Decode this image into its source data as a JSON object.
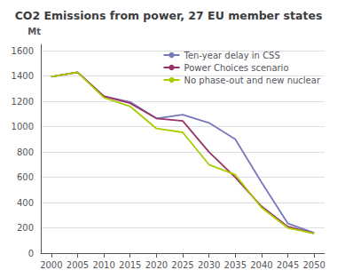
{
  "chart_data": {
    "type": "line",
    "title": "CO2 Emissions from power, 27 EU member states",
    "ylabel": "Mt",
    "x": [
      2000,
      2005,
      2010,
      2015,
      2020,
      2025,
      2030,
      2035,
      2040,
      2045,
      2050
    ],
    "series": [
      {
        "name": "Ten-year delay in CSS",
        "color": "#7777bb",
        "values": [
          1395,
          1430,
          1240,
          1195,
          1065,
          1095,
          1030,
          900,
          560,
          235,
          160
        ]
      },
      {
        "name": "Power Choices scenario",
        "color": "#993366",
        "values": [
          1395,
          1430,
          1240,
          1185,
          1065,
          1045,
          800,
          600,
          370,
          210,
          155
        ]
      },
      {
        "name": "No phase-out and new nuclear",
        "color": "#aacc00",
        "values": [
          1395,
          1430,
          1230,
          1160,
          985,
          955,
          700,
          620,
          360,
          200,
          155
        ]
      }
    ],
    "xlim": [
      1998,
      2052
    ],
    "xticks": [
      2000,
      2005,
      2010,
      2015,
      2020,
      2025,
      2030,
      2035,
      2040,
      2045,
      2050
    ],
    "ylim": [
      0,
      1650
    ],
    "yticks": [
      0,
      200,
      400,
      600,
      800,
      1000,
      1200,
      1400,
      1600
    ],
    "grid": true,
    "legend": "upper right"
  }
}
